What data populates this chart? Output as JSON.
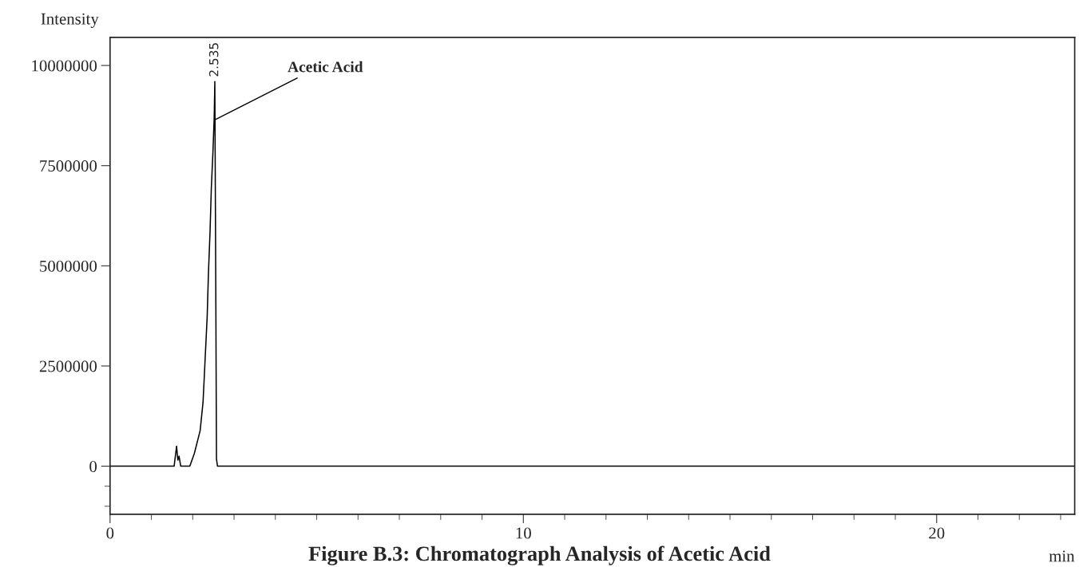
{
  "chart_data": {
    "type": "line",
    "title": "Figure B.3: Chromatograph Analysis of Acetic Acid",
    "xlabel": "min",
    "ylabel": "Intensity",
    "x": [
      0,
      1.55,
      1.61,
      1.64,
      1.67,
      1.71,
      1.78,
      1.93,
      2.04,
      2.18,
      2.25,
      2.3,
      2.35,
      2.38,
      2.42,
      2.45,
      2.49,
      2.52,
      2.535,
      2.56,
      2.575,
      2.6,
      3.5,
      23.34
    ],
    "series": [
      {
        "color": "#000000",
        "values": [
          0,
          0,
          500000,
          150000,
          250000,
          0,
          0,
          0,
          320000,
          890000,
          1600000,
          2670000,
          3730000,
          4800000,
          5870000,
          6930000,
          7860000,
          8710000,
          9600000,
          4000000,
          180000,
          0,
          0,
          0
        ]
      }
    ],
    "xlim": [
      0,
      23.34
    ],
    "ylim": [
      -1200000,
      10700000
    ],
    "xticks": [
      0,
      {
        "value": 1,
        "label": null
      },
      {
        "value": 2,
        "label": null
      },
      {
        "value": 3,
        "label": null
      },
      {
        "value": 4,
        "label": null
      },
      {
        "value": 5,
        "label": null
      },
      {
        "value": 6,
        "label": null
      },
      {
        "value": 7,
        "label": null
      },
      {
        "value": 8,
        "label": null
      },
      {
        "value": 9,
        "label": null
      },
      10,
      {
        "value": 11,
        "label": null
      },
      {
        "value": 12,
        "label": null
      },
      {
        "value": 13,
        "label": null
      },
      {
        "value": 14,
        "label": null
      },
      {
        "value": 15,
        "label": null
      },
      {
        "value": 16,
        "label": null
      },
      {
        "value": 17,
        "label": null
      },
      {
        "value": 18,
        "label": null
      },
      {
        "value": 19,
        "label": null
      },
      20,
      {
        "value": 21,
        "label": null
      },
      {
        "value": 22,
        "label": null
      },
      {
        "value": 23,
        "label": null
      }
    ],
    "yticks": [
      {
        "value": -1000000,
        "label": null
      },
      {
        "value": -500000,
        "label": null
      },
      0,
      2500000,
      5000000,
      7500000,
      10000000
    ],
    "annotations": [
      {
        "text": "2.535",
        "x": 2.535,
        "y": 9600000
      },
      {
        "text": "Acetic Acid",
        "x": 2.55,
        "y": 8650000
      }
    ],
    "grid": false,
    "legend": false,
    "line_style": "solid",
    "marker": "none"
  }
}
